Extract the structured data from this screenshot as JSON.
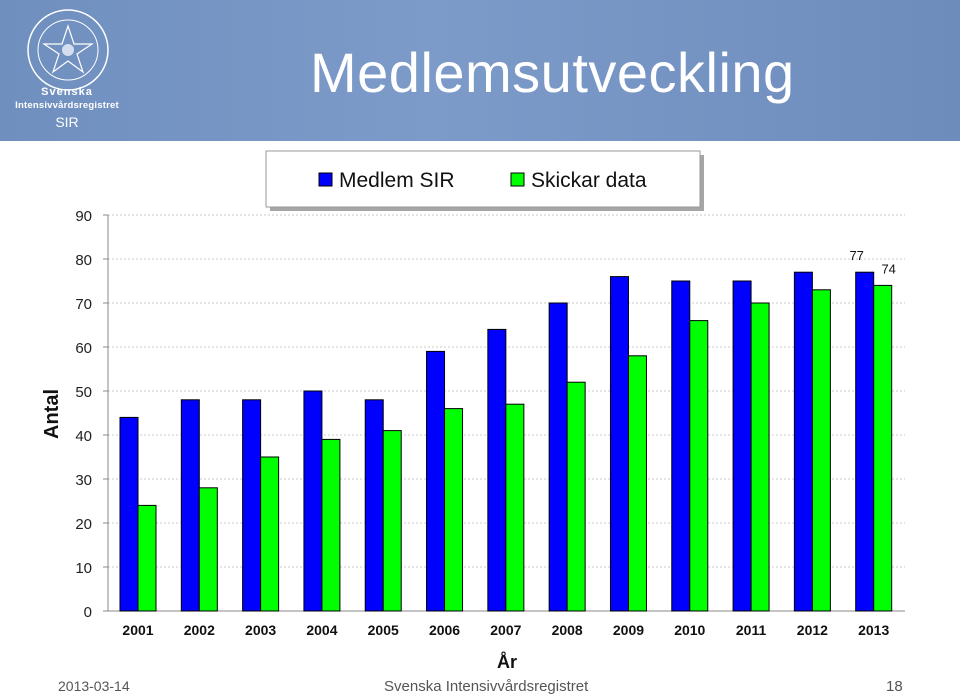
{
  "slide": {
    "title": "Medlemsutveckling",
    "footer_date": "2013-03-14",
    "footer_org": "Svenska Intensivvårdsregistret",
    "page_number": "18"
  },
  "logo": {
    "ring_text": "SOCIETAS SVECICA INTENSIVAE CURAE",
    "line1": "Svenska",
    "line2": "Intensivvårdsregistret",
    "line3": "SIR"
  },
  "chart_data": {
    "type": "bar",
    "categories": [
      "2001",
      "2002",
      "2003",
      "2004",
      "2005",
      "2006",
      "2007",
      "2008",
      "2009",
      "2010",
      "2011",
      "2012",
      "2013"
    ],
    "series": [
      {
        "name": "Medlem SIR",
        "color": "#0000ff",
        "values": [
          44,
          48,
          48,
          50,
          48,
          59,
          64,
          70,
          76,
          75,
          75,
          77,
          77
        ]
      },
      {
        "name": "Skickar data",
        "color": "#00ff00",
        "values": [
          24,
          28,
          35,
          39,
          41,
          46,
          47,
          52,
          58,
          66,
          70,
          73,
          74
        ]
      }
    ],
    "data_labels": [
      {
        "series": 0,
        "index": 12,
        "text": "77"
      },
      {
        "series": 1,
        "index": 12,
        "text": "74"
      }
    ],
    "xlabel": "År",
    "ylabel": "Antal",
    "ylim": [
      0,
      90
    ],
    "yticks": [
      0,
      10,
      20,
      30,
      40,
      50,
      60,
      70,
      80,
      90
    ],
    "grid": true,
    "legend_position": "top"
  }
}
